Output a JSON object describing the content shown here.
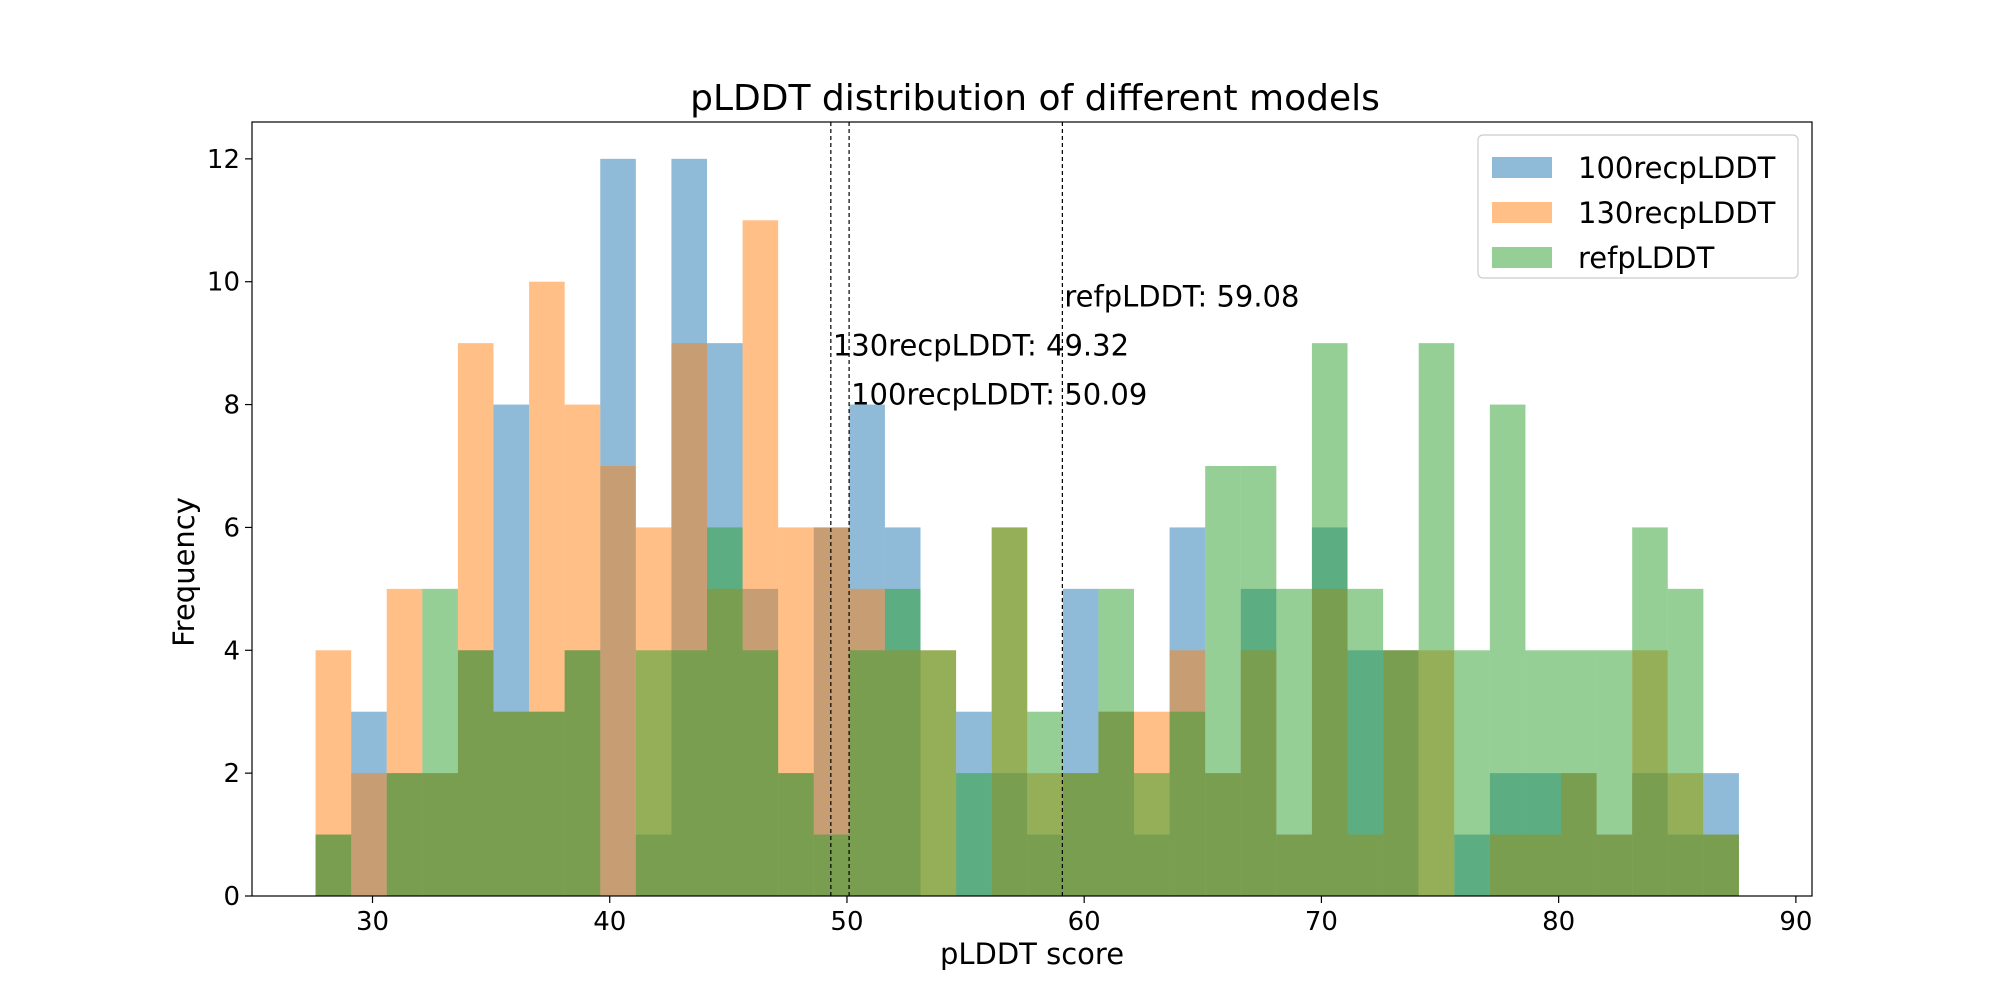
{
  "chart_data": {
    "type": "bar",
    "title": "pLDDT distribution of different models",
    "xlabel": "pLDDT score",
    "ylabel": "Frequency",
    "xlim": [
      24.92,
      90.68
    ],
    "ylim": [
      0,
      12.6
    ],
    "xticks": [
      30,
      40,
      50,
      60,
      70,
      80,
      90
    ],
    "yticks": [
      0,
      2,
      4,
      6,
      8,
      10,
      12
    ],
    "bin_start": 27.6,
    "bin_width": 1.5,
    "series": [
      {
        "name": "100recpLDDT",
        "color": "#1f77b4",
        "values": [
          1,
          3,
          2,
          2,
          4,
          8,
          3,
          4,
          12,
          1,
          12,
          9,
          5,
          2,
          6,
          8,
          6,
          0,
          3,
          2,
          1,
          5,
          3,
          1,
          6,
          2,
          5,
          1,
          6,
          4,
          4,
          0,
          1,
          2,
          2,
          2,
          1,
          2,
          1,
          2
        ]
      },
      {
        "name": "130recpLDDT",
        "color": "#ff7f0e",
        "values": [
          4,
          2,
          5,
          2,
          9,
          3,
          10,
          8,
          7,
          6,
          9,
          5,
          11,
          6,
          6,
          5,
          4,
          4,
          0,
          6,
          2,
          2,
          3,
          3,
          4,
          2,
          4,
          1,
          5,
          1,
          4,
          4,
          0,
          1,
          1,
          2,
          1,
          4,
          2,
          1
        ]
      },
      {
        "name": "refpLDDT",
        "color": "#2ca02c",
        "values": [
          1,
          0,
          2,
          5,
          4,
          3,
          3,
          4,
          0,
          4,
          4,
          6,
          4,
          2,
          1,
          4,
          5,
          4,
          2,
          6,
          3,
          2,
          5,
          2,
          3,
          7,
          7,
          5,
          9,
          5,
          4,
          9,
          4,
          8,
          4,
          4,
          4,
          6,
          5,
          1
        ]
      }
    ],
    "annotations": [
      {
        "text": "refpLDDT: 59.08",
        "x": 59.08,
        "y": 9.6
      },
      {
        "text": "130recpLDDT: 49.32",
        "x": 49.32,
        "y": 8.8
      },
      {
        "text": "100recpLDDT: 50.09",
        "x": 50.09,
        "y": 8.0
      }
    ],
    "legend_position": "top-right"
  }
}
